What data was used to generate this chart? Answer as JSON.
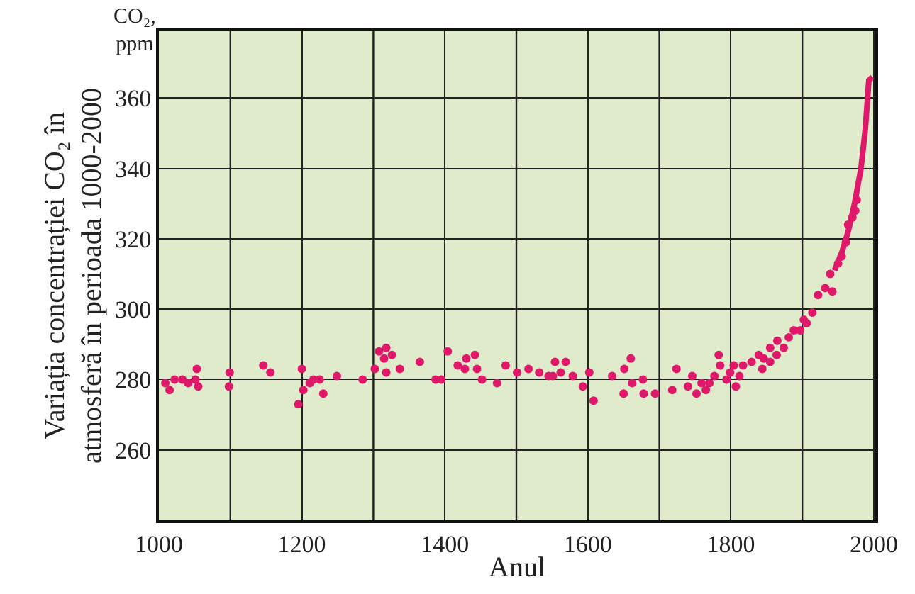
{
  "chart_data": {
    "type": "scatter",
    "xlabel": "Anul",
    "ylabel": "Variația concentrației CO₂ în\natmosferă în perioada 1000-2000",
    "annotations": [
      "CO₂,\nppm"
    ],
    "xlim": [
      1000,
      2002
    ],
    "xticks": [
      1000,
      1200,
      1400,
      1600,
      1800,
      2000
    ],
    "ylim": [
      240,
      379
    ],
    "yticks": [
      260,
      280,
      300,
      320,
      340,
      360
    ],
    "grid": true,
    "series": [
      {
        "marker": "circle",
        "color": "#e0186a",
        "x": [
          1009,
          1015,
          1022,
          1033,
          1041,
          1051,
          1053,
          1055,
          1098,
          1099,
          1146,
          1156,
          1195,
          1200,
          1202,
          1211,
          1216,
          1225,
          1230,
          1249,
          1285,
          1302,
          1308,
          1315,
          1318,
          1318,
          1326,
          1337,
          1365,
          1387,
          1395,
          1404,
          1418,
          1428,
          1430,
          1442,
          1445,
          1452,
          1473,
          1485,
          1501,
          1517,
          1532,
          1545,
          1551,
          1554,
          1562,
          1569,
          1579,
          1593,
          1602,
          1608,
          1634,
          1650,
          1651,
          1660,
          1662,
          1677,
          1678,
          1694,
          1718,
          1724,
          1740,
          1746,
          1752,
          1759,
          1765,
          1770,
          1777,
          1783,
          1785,
          1794,
          1799,
          1804,
          1807,
          1812,
          1817,
          1829,
          1839,
          1844,
          1846,
          1855,
          1855,
          1864,
          1865,
          1874,
          1881,
          1888,
          1897,
          1902,
          1906,
          1914,
          1922,
          1932,
          1939,
          1942,
          1950,
          1955,
          1961,
          1964,
          1970,
          1974,
          1976
        ],
        "values": [
          279,
          277,
          280,
          280,
          279,
          280,
          283,
          278,
          278,
          282,
          284,
          282,
          273,
          283,
          277,
          279,
          280,
          280,
          276,
          281,
          280,
          283,
          288,
          286,
          289,
          282,
          287,
          283,
          285,
          280,
          280,
          288,
          284,
          283,
          286,
          287,
          283,
          280,
          279,
          284,
          282,
          283,
          282,
          281,
          281,
          285,
          282,
          285,
          281,
          278,
          282,
          274,
          281,
          276,
          283,
          286,
          279,
          280,
          276,
          276,
          277,
          283,
          278,
          281,
          276,
          279,
          277,
          279,
          281,
          287,
          284,
          280,
          282,
          284,
          278,
          281,
          284,
          285,
          287,
          283,
          286,
          289,
          285,
          287,
          291,
          289,
          292,
          294,
          294,
          297,
          296,
          299,
          304,
          306,
          310,
          305,
          313,
          315,
          319,
          324,
          326,
          328,
          331
        ]
      },
      {
        "type": "line",
        "marker": "none",
        "color": "#e0186a",
        "x": [
          1945,
          1955,
          1964,
          1973,
          1982,
          1988,
          1993,
          1998
        ],
        "values": [
          311,
          316,
          322,
          330,
          340,
          351,
          365,
          366
        ]
      }
    ]
  }
}
